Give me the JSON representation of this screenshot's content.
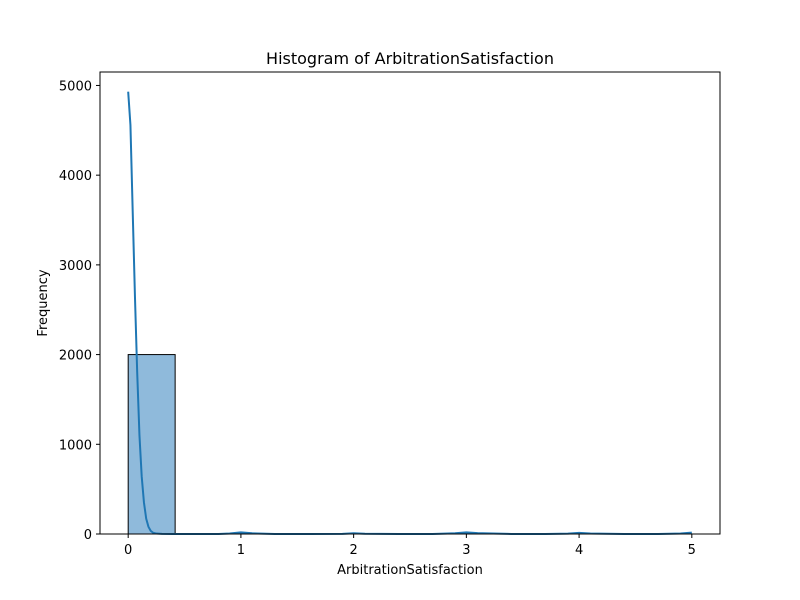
{
  "chart_data": {
    "type": "bar",
    "title": "Histogram of ArbitrationSatisfaction",
    "xlabel": "ArbitrationSatisfaction",
    "ylabel": "Frequency",
    "xlim": [
      -0.25,
      5.25
    ],
    "ylim": [
      0,
      5150
    ],
    "x_ticks": [
      0,
      1,
      2,
      3,
      4,
      5
    ],
    "y_ticks": [
      0,
      1000,
      2000,
      3000,
      4000,
      5000
    ],
    "grid": false,
    "bins": [
      {
        "x0": 0.0,
        "x1": 0.4166,
        "count": 2000
      },
      {
        "x0": 0.4166,
        "x1": 0.8333,
        "count": 0
      },
      {
        "x0": 0.8333,
        "x1": 1.25,
        "count": 0
      },
      {
        "x0": 1.25,
        "x1": 1.6666,
        "count": 0
      },
      {
        "x0": 1.6666,
        "x1": 2.0833,
        "count": 0
      },
      {
        "x0": 2.0833,
        "x1": 2.5,
        "count": 0
      },
      {
        "x0": 2.5,
        "x1": 2.9166,
        "count": 0
      },
      {
        "x0": 2.9166,
        "x1": 3.3333,
        "count": 0
      },
      {
        "x0": 3.3333,
        "x1": 3.75,
        "count": 0
      },
      {
        "x0": 3.75,
        "x1": 4.1666,
        "count": 0
      },
      {
        "x0": 4.1666,
        "x1": 4.5833,
        "count": 0
      },
      {
        "x0": 4.5833,
        "x1": 5.0,
        "count": 0
      }
    ],
    "kde_line": {
      "x": [
        0.0,
        0.02,
        0.04,
        0.06,
        0.08,
        0.1,
        0.12,
        0.14,
        0.16,
        0.18,
        0.2,
        0.22,
        0.25,
        0.3,
        0.4,
        0.6,
        0.8,
        0.9,
        1.0,
        1.1,
        1.3,
        1.6,
        1.9,
        2.0,
        2.1,
        2.4,
        2.7,
        2.9,
        3.0,
        3.1,
        3.4,
        3.7,
        3.9,
        4.0,
        4.1,
        4.4,
        4.7,
        4.9,
        5.0
      ],
      "y": [
        4930,
        4560,
        3600,
        2650,
        1800,
        1100,
        640,
        350,
        170,
        80,
        35,
        15,
        5,
        1,
        0,
        0,
        0,
        5,
        18,
        8,
        0,
        0,
        2,
        8,
        3,
        0,
        0,
        8,
        18,
        10,
        0,
        0,
        4,
        12,
        5,
        0,
        0,
        6,
        15
      ]
    },
    "colors": {
      "bar_fill": "#8fbadb",
      "bar_edge": "#000000",
      "line": "#1f77b4",
      "axes": "#000000"
    }
  }
}
